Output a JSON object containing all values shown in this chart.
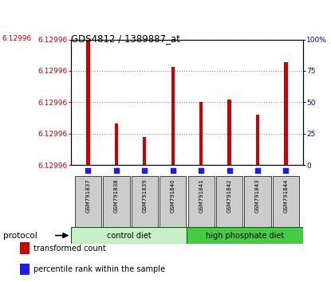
{
  "title": "GDS4812 / 1389887_at",
  "samples": [
    "GSM791837",
    "GSM791838",
    "GSM791839",
    "GSM791840",
    "GSM791841",
    "GSM791842",
    "GSM791843",
    "GSM791844"
  ],
  "fractions": [
    1.0,
    0.33,
    0.22,
    0.78,
    0.5,
    0.52,
    0.4,
    0.82
  ],
  "percentile_fractions": [
    0.03,
    0.03,
    0.03,
    0.03,
    0.03,
    0.03,
    0.03,
    0.03
  ],
  "y_min": 6.12993,
  "y_max": 6.13001,
  "ytick_count": 5,
  "ytick_label": "6.12996",
  "right_yticks": [
    0,
    25,
    50,
    75,
    100
  ],
  "right_ytick_labels": [
    "0",
    "25",
    "50",
    "75",
    "100%"
  ],
  "bar_color": "#cc0000",
  "dot_color": "#1a1aff",
  "sample_box_color": "#cccccc",
  "control_diet_color": "#c8f0c8",
  "hp_diet_color": "#44cc44",
  "background_color": "#ffffff",
  "grid_linestyle": "dotted",
  "grid_color": "#888888",
  "bar_width": 0.12,
  "title_color_left": "#cc0000",
  "title_color_right": "black",
  "left_tick_color": "#cc0000",
  "right_tick_color": "#0000cc"
}
